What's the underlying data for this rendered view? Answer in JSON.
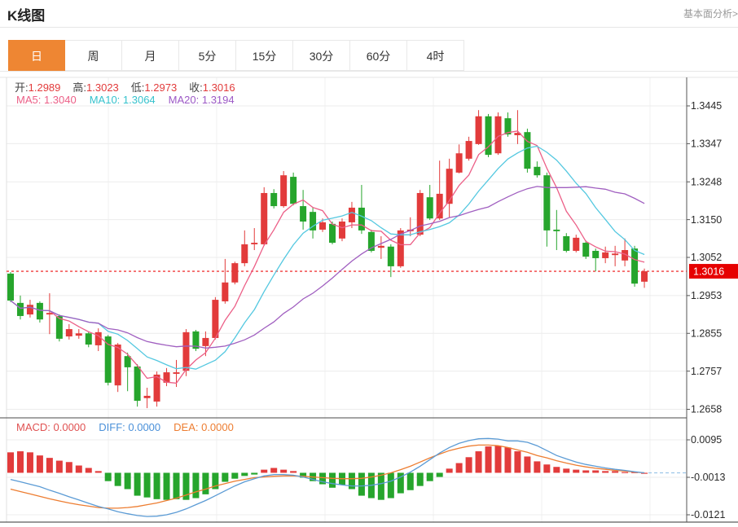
{
  "header": {
    "title": "K线图",
    "link": "基本面分析>"
  },
  "tabs": {
    "items": [
      "日",
      "周",
      "月",
      "5分",
      "15分",
      "30分",
      "60分",
      "4时"
    ],
    "active_index": 0
  },
  "legend": {
    "ohlc": [
      {
        "label": "开:",
        "value": "1.2989"
      },
      {
        "label": "高:",
        "value": "1.3023"
      },
      {
        "label": "低:",
        "value": "1.2973"
      },
      {
        "label": "收:",
        "value": "1.3016"
      }
    ],
    "ma": [
      {
        "label": "MA5:",
        "value": "1.3040",
        "color": "#ec5f87"
      },
      {
        "label": "MA10:",
        "value": "1.3064",
        "color": "#35c2cd"
      },
      {
        "label": "MA20:",
        "value": "1.3194",
        "color": "#9c59c6"
      }
    ],
    "macd": [
      {
        "label": "MACD:",
        "value": "0.0000",
        "color": "#e05252"
      },
      {
        "label": "DIFF:",
        "value": "0.0000",
        "color": "#4a90d9"
      },
      {
        "label": "DEA:",
        "value": "0.0000",
        "color": "#ed7d31"
      }
    ]
  },
  "chart_data": {
    "type": "candlestick",
    "price_panel": {
      "y_ticks": [
        1.3445,
        1.3347,
        1.3248,
        1.315,
        1.3052,
        1.2953,
        1.2855,
        1.2757,
        1.2658
      ],
      "current_price": 1.3016,
      "current_price_label": "1.3016",
      "ma_periods": [
        5,
        10,
        20
      ],
      "candles": [
        [
          1.301,
          1.3014,
          1.2936,
          1.294
        ],
        [
          1.2934,
          1.2953,
          1.2891,
          1.29
        ],
        [
          1.2904,
          1.2942,
          1.2896,
          1.2929
        ],
        [
          1.2934,
          1.2938,
          1.2883,
          1.2891
        ],
        [
          1.2904,
          1.2959,
          1.2853,
          1.2908
        ],
        [
          1.29,
          1.2904,
          1.2834,
          1.2841
        ],
        [
          1.2847,
          1.2879,
          1.2839,
          1.2866
        ],
        [
          1.2849,
          1.2866,
          1.2841,
          1.2855
        ],
        [
          1.2855,
          1.286,
          1.2819,
          1.2826
        ],
        [
          1.2824,
          1.2868,
          1.2809,
          1.2858
        ],
        [
          1.2847,
          1.2851,
          1.272,
          1.2727
        ],
        [
          1.272,
          1.283,
          1.2703,
          1.2826
        ],
        [
          1.2796,
          1.2805,
          1.2705,
          1.2767
        ],
        [
          1.2769,
          1.2775,
          1.2665,
          1.268
        ],
        [
          1.2687,
          1.2714,
          1.2661,
          1.2693
        ],
        [
          1.2678,
          1.2756,
          1.2665,
          1.2748
        ],
        [
          1.2727,
          1.2765,
          1.2718,
          1.2754
        ],
        [
          1.275,
          1.2786,
          1.2716,
          1.2754
        ],
        [
          1.2758,
          1.2866,
          1.2744,
          1.2858
        ],
        [
          1.286,
          1.2864,
          1.2809,
          1.2815
        ],
        [
          1.2822,
          1.286,
          1.2796,
          1.2843
        ],
        [
          1.2843,
          1.2949,
          1.2839,
          1.2942
        ],
        [
          1.2938,
          1.3048,
          1.2932,
          1.2987
        ],
        [
          1.2987,
          1.3041,
          1.2982,
          1.3037
        ],
        [
          1.3037,
          1.3122,
          1.3029,
          1.3086
        ],
        [
          1.3086,
          1.3128,
          1.3071,
          1.309
        ],
        [
          1.3086,
          1.3234,
          1.3082,
          1.3219
        ],
        [
          1.3219,
          1.3229,
          1.3179,
          1.3185
        ],
        [
          1.3185,
          1.3276,
          1.3181,
          1.3265
        ],
        [
          1.3261,
          1.3272,
          1.3187,
          1.3191
        ],
        [
          1.3185,
          1.3227,
          1.3124,
          1.3145
        ],
        [
          1.317,
          1.3181,
          1.3101,
          1.3122
        ],
        [
          1.3124,
          1.3153,
          1.3118,
          1.3143
        ],
        [
          1.3139,
          1.3145,
          1.3086,
          1.309
        ],
        [
          1.3101,
          1.3153,
          1.3094,
          1.3145
        ],
        [
          1.3143,
          1.3196,
          1.3128,
          1.3181
        ],
        [
          1.3181,
          1.324,
          1.3113,
          1.3122
        ],
        [
          1.3118,
          1.3124,
          1.3065,
          1.3069
        ],
        [
          1.3077,
          1.3107,
          1.3048,
          1.3082
        ],
        [
          1.308,
          1.3086,
          1.3001,
          1.3029
        ],
        [
          1.3029,
          1.3128,
          1.3025,
          1.3122
        ],
        [
          1.312,
          1.3156,
          1.3107,
          1.3124
        ],
        [
          1.3111,
          1.3227,
          1.3107,
          1.3219
        ],
        [
          1.3208,
          1.324,
          1.3149,
          1.3153
        ],
        [
          1.3153,
          1.3303,
          1.3149,
          1.3217
        ],
        [
          1.3191,
          1.3308,
          1.3156,
          1.3282
        ],
        [
          1.3272,
          1.3345,
          1.327,
          1.3322
        ],
        [
          1.3308,
          1.3365,
          1.3303,
          1.3354
        ],
        [
          1.3346,
          1.3434,
          1.3344,
          1.3418
        ],
        [
          1.3418,
          1.3424,
          1.3312,
          1.3318
        ],
        [
          1.3322,
          1.3428,
          1.3318,
          1.3418
        ],
        [
          1.3413,
          1.3428,
          1.3365,
          1.3371
        ],
        [
          1.3369,
          1.3434,
          1.3346,
          1.3375
        ],
        [
          1.3377,
          1.3386,
          1.3272,
          1.3282
        ],
        [
          1.3287,
          1.3301,
          1.3259,
          1.3265
        ],
        [
          1.3265,
          1.3272,
          1.308,
          1.3122
        ],
        [
          1.3124,
          1.3175,
          1.3071,
          1.312
        ],
        [
          1.3107,
          1.3115,
          1.3065,
          1.3069
        ],
        [
          1.3069,
          1.3111,
          1.3065,
          1.3103
        ],
        [
          1.309,
          1.3096,
          1.3048,
          1.3054
        ],
        [
          1.3069,
          1.3075,
          1.3016,
          1.305
        ],
        [
          1.305,
          1.308,
          1.3037,
          1.3065
        ],
        [
          1.3058,
          1.3082,
          1.3029,
          1.3062
        ],
        [
          1.3044,
          1.3101,
          1.3029,
          1.3071
        ],
        [
          1.3075,
          1.3082,
          1.2976,
          1.2984
        ],
        [
          1.2989,
          1.3023,
          1.2973,
          1.3016
        ]
      ]
    },
    "macd_panel": {
      "y_ticks": [
        0.0095,
        -0.0013,
        -0.0121
      ],
      "hist": [
        0.0059,
        0.0062,
        0.0059,
        0.005,
        0.0043,
        0.0035,
        0.0031,
        0.0021,
        0.0014,
        0.0005,
        -0.0024,
        -0.0038,
        -0.0047,
        -0.0066,
        -0.0071,
        -0.0076,
        -0.0078,
        -0.0076,
        -0.0078,
        -0.0073,
        -0.0062,
        -0.0047,
        -0.0026,
        -0.0017,
        -0.0009,
        -0.0005,
        0.0009,
        0.0014,
        0.0009,
        0.0005,
        -0.0014,
        -0.0024,
        -0.0033,
        -0.0043,
        -0.0035,
        -0.0047,
        -0.0066,
        -0.0073,
        -0.0078,
        -0.0073,
        -0.0059,
        -0.005,
        -0.0038,
        -0.0024,
        -0.0012,
        0.0012,
        0.0028,
        0.0045,
        0.0062,
        0.0076,
        0.0078,
        0.0073,
        0.0062,
        0.0047,
        0.0033,
        0.0024,
        0.0017,
        0.0012,
        0.0009,
        0.0007,
        0.0007,
        0.0005,
        0.0005,
        0.0002,
        0.0002,
        0.0
      ],
      "diff": [
        -0.0019,
        -0.0026,
        -0.0033,
        -0.004,
        -0.005,
        -0.0059,
        -0.0069,
        -0.0078,
        -0.0088,
        -0.0097,
        -0.0104,
        -0.0112,
        -0.0118,
        -0.0123,
        -0.0126,
        -0.0125,
        -0.0121,
        -0.0114,
        -0.0104,
        -0.0092,
        -0.008,
        -0.0066,
        -0.0052,
        -0.0038,
        -0.0026,
        -0.0017,
        -0.0009,
        -0.0005,
        -0.0005,
        -0.0007,
        -0.0012,
        -0.0019,
        -0.0026,
        -0.0031,
        -0.0035,
        -0.0038,
        -0.0038,
        -0.0036,
        -0.0031,
        -0.0024,
        -0.0012,
        0.0002,
        0.0019,
        0.0038,
        0.0057,
        0.0073,
        0.0085,
        0.0093,
        0.0098,
        0.0099,
        0.0097,
        0.0092,
        0.0092,
        0.0088,
        0.0078,
        0.0064,
        0.005,
        0.004,
        0.0031,
        0.0024,
        0.0019,
        0.0014,
        0.001,
        0.0007,
        0.0003,
        0.0
      ],
      "dea": [
        -0.0047,
        -0.0054,
        -0.0061,
        -0.0068,
        -0.0075,
        -0.0081,
        -0.0087,
        -0.0092,
        -0.0096,
        -0.01,
        -0.0102,
        -0.0102,
        -0.01,
        -0.0097,
        -0.0092,
        -0.0087,
        -0.008,
        -0.0073,
        -0.0064,
        -0.0055,
        -0.0047,
        -0.0038,
        -0.0031,
        -0.0024,
        -0.0019,
        -0.0014,
        -0.0012,
        -0.001,
        -0.0009,
        -0.0009,
        -0.001,
        -0.0012,
        -0.0014,
        -0.0016,
        -0.0017,
        -0.0017,
        -0.0016,
        -0.0012,
        -0.0007,
        0.0,
        0.0009,
        0.0019,
        0.0031,
        0.0043,
        0.0054,
        0.0064,
        0.0071,
        0.0077,
        0.008,
        0.008,
        0.0078,
        0.0073,
        0.0066,
        0.0059,
        0.005,
        0.0043,
        0.0035,
        0.0028,
        0.0022,
        0.0017,
        0.0013,
        0.001,
        0.0007,
        0.0005,
        0.0002,
        0.0
      ]
    },
    "colors": {
      "up": "#e23b3b",
      "down": "#26a52c",
      "ma5": "#ec5f87",
      "ma10": "#54c8e0",
      "ma20": "#a05fc0",
      "diff_line": "#5b9bd5",
      "dea_line": "#ed7d31",
      "price_line": "#f03b3b",
      "badge_bg": "#e60000",
      "active_tab": "#ee8633",
      "grid": "#ececec",
      "axis": "#555555"
    }
  }
}
